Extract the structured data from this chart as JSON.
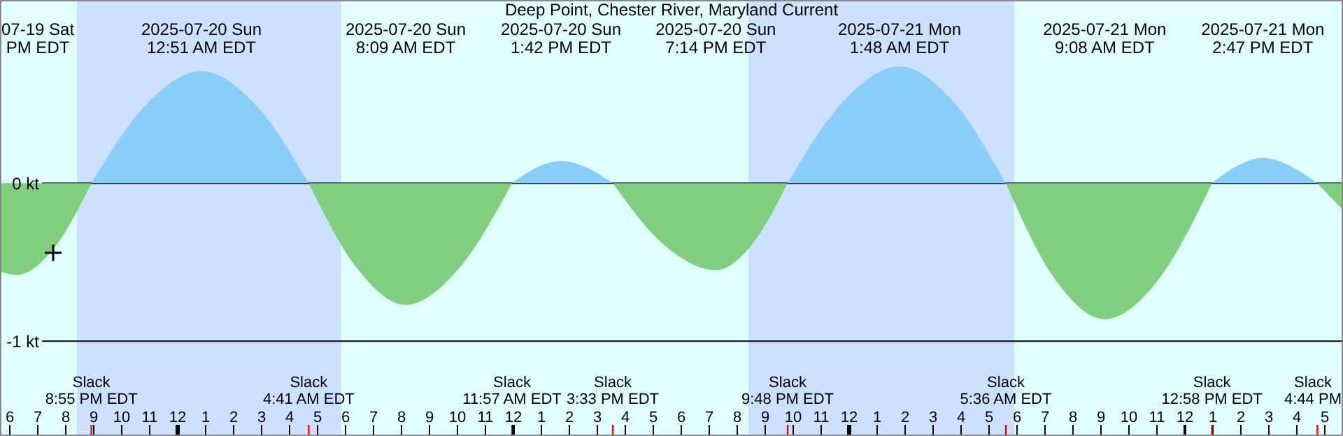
{
  "chart_data": {
    "type": "area",
    "title": "Deep Point, Chester River, Maryland Current",
    "x": [
      "2025-07-19T17:39",
      "2025-07-19T18:15",
      "2025-07-19T19:35",
      "2025-07-19T20:55",
      "2025-07-19T22:53",
      "2025-07-20T00:51",
      "2025-07-20T02:46",
      "2025-07-20T04:41",
      "2025-07-20T06:25",
      "2025-07-20T08:09",
      "2025-07-20T10:03",
      "2025-07-20T11:57",
      "2025-07-20T12:50",
      "2025-07-20T13:42",
      "2025-07-20T14:37",
      "2025-07-20T15:33",
      "2025-07-20T17:23",
      "2025-07-20T19:14",
      "2025-07-20T20:31",
      "2025-07-20T21:48",
      "2025-07-20T23:48",
      "2025-07-21T01:48",
      "2025-07-21T03:42",
      "2025-07-21T05:36",
      "2025-07-21T07:22",
      "2025-07-21T09:08",
      "2025-07-21T11:03",
      "2025-07-21T12:58",
      "2025-07-21T13:52",
      "2025-07-21T14:47",
      "2025-07-21T15:45",
      "2025-07-21T16:44",
      "2025-07-21T17:39"
    ],
    "series": [
      {
        "color": "#87cefa",
        "values": [
          null,
          null,
          null,
          0,
          0.5,
          0.71,
          0.5,
          0,
          null,
          null,
          null,
          0,
          0.1,
          0.14,
          0.1,
          0,
          null,
          null,
          null,
          0,
          0.52,
          0.74,
          0.52,
          0,
          null,
          null,
          null,
          0,
          0.11,
          0.16,
          0.11,
          0,
          null
        ]
      },
      {
        "color": "#7fcf7f",
        "values": [
          -0.56,
          -0.58,
          -0.41,
          0,
          null,
          null,
          null,
          0,
          -0.54,
          -0.77,
          -0.54,
          0,
          null,
          null,
          null,
          0,
          -0.39,
          -0.55,
          -0.39,
          0,
          null,
          null,
          null,
          0,
          -0.61,
          -0.86,
          -0.61,
          0,
          null,
          null,
          null,
          0,
          -0.17
        ]
      },
      {
        "type": "scatter",
        "marker": "cross",
        "color": "#000000",
        "x": [
          "2025-07-19T19:33"
        ],
        "values": [
          -0.44
        ]
      }
    ],
    "xlim": [
      "2025-07-19T17:39",
      "2025-07-21T17:39"
    ],
    "xticks": [
      {
        "value": "2025-07-19T18:00",
        "label": "6"
      },
      {
        "value": "2025-07-19T19:00",
        "label": "7"
      },
      {
        "value": "2025-07-19T20:00",
        "label": "8"
      },
      {
        "value": "2025-07-19T21:00",
        "label": "9"
      },
      {
        "value": "2025-07-19T22:00",
        "label": "10"
      },
      {
        "value": "2025-07-19T23:00",
        "label": "11"
      },
      {
        "value": "2025-07-20T00:00",
        "label": "12"
      },
      {
        "value": "2025-07-20T01:00",
        "label": "1"
      },
      {
        "value": "2025-07-20T02:00",
        "label": "2"
      },
      {
        "value": "2025-07-20T03:00",
        "label": "3"
      },
      {
        "value": "2025-07-20T04:00",
        "label": "4"
      },
      {
        "value": "2025-07-20T05:00",
        "label": "5"
      },
      {
        "value": "2025-07-20T06:00",
        "label": "6"
      },
      {
        "value": "2025-07-20T07:00",
        "label": "7"
      },
      {
        "value": "2025-07-20T08:00",
        "label": "8"
      },
      {
        "value": "2025-07-20T09:00",
        "label": "9"
      },
      {
        "value": "2025-07-20T10:00",
        "label": "10"
      },
      {
        "value": "2025-07-20T11:00",
        "label": "11"
      },
      {
        "value": "2025-07-20T12:00",
        "label": "12"
      },
      {
        "value": "2025-07-20T13:00",
        "label": "1"
      },
      {
        "value": "2025-07-20T14:00",
        "label": "2"
      },
      {
        "value": "2025-07-20T15:00",
        "label": "3"
      },
      {
        "value": "2025-07-20T16:00",
        "label": "4"
      },
      {
        "value": "2025-07-20T17:00",
        "label": "5"
      },
      {
        "value": "2025-07-20T18:00",
        "label": "6"
      },
      {
        "value": "2025-07-20T19:00",
        "label": "7"
      },
      {
        "value": "2025-07-20T20:00",
        "label": "8"
      },
      {
        "value": "2025-07-20T21:00",
        "label": "9"
      },
      {
        "value": "2025-07-20T22:00",
        "label": "10"
      },
      {
        "value": "2025-07-20T23:00",
        "label": "11"
      },
      {
        "value": "2025-07-21T00:00",
        "label": "12"
      },
      {
        "value": "2025-07-21T01:00",
        "label": "1"
      },
      {
        "value": "2025-07-21T02:00",
        "label": "2"
      },
      {
        "value": "2025-07-21T03:00",
        "label": "3"
      },
      {
        "value": "2025-07-21T04:00",
        "label": "4"
      },
      {
        "value": "2025-07-21T05:00",
        "label": "5"
      },
      {
        "value": "2025-07-21T06:00",
        "label": "6"
      },
      {
        "value": "2025-07-21T07:00",
        "label": "7"
      },
      {
        "value": "2025-07-21T08:00",
        "label": "8"
      },
      {
        "value": "2025-07-21T09:00",
        "label": "9"
      },
      {
        "value": "2025-07-21T10:00",
        "label": "10"
      },
      {
        "value": "2025-07-21T11:00",
        "label": "11"
      },
      {
        "value": "2025-07-21T12:00",
        "label": "12"
      },
      {
        "value": "2025-07-21T13:00",
        "label": "1"
      },
      {
        "value": "2025-07-21T14:00",
        "label": "2"
      },
      {
        "value": "2025-07-21T15:00",
        "label": "3"
      },
      {
        "value": "2025-07-21T16:00",
        "label": "4"
      },
      {
        "value": "2025-07-21T17:00",
        "label": "5"
      }
    ],
    "ylim": [
      -1.6,
      1.16
    ],
    "yticks": [
      {
        "value": 0,
        "label": "0 kt"
      },
      {
        "value": -1,
        "label": "-1 kt"
      }
    ],
    "grid": "y",
    "bands": [
      {
        "axis": "x",
        "from": "2025-07-19T20:24",
        "to": "2025-07-20T05:51",
        "color": "#cce0ff"
      },
      {
        "axis": "x",
        "from": "2025-07-20T20:24",
        "to": "2025-07-21T05:54",
        "color": "#cce0ff"
      }
    ],
    "annotations": [
      "07-19 Sat\nPM EDT",
      "2025-07-20 Sun\n12:51 AM EDT",
      "2025-07-20 Sun\n8:09 AM EDT",
      "2025-07-20 Sun\n1:42 PM EDT",
      "2025-07-20 Sun\n7:14 PM EDT",
      "2025-07-21 Mon\n1:48 AM EDT",
      "2025-07-21 Mon\n9:08 AM EDT",
      "2025-07-21 Mon\n2:47 PM EDT",
      "Slack\n8:55 PM EDT",
      "Slack\n4:41 AM EDT",
      "Slack\n11:57 AM EDT",
      "Slack\n3:33 PM EDT",
      "Slack\n9:48 PM EDT",
      "Slack\n5:36 AM EDT",
      "Slack\n12:58 PM EDT",
      "Slack\n4:44 PM"
    ]
  }
}
